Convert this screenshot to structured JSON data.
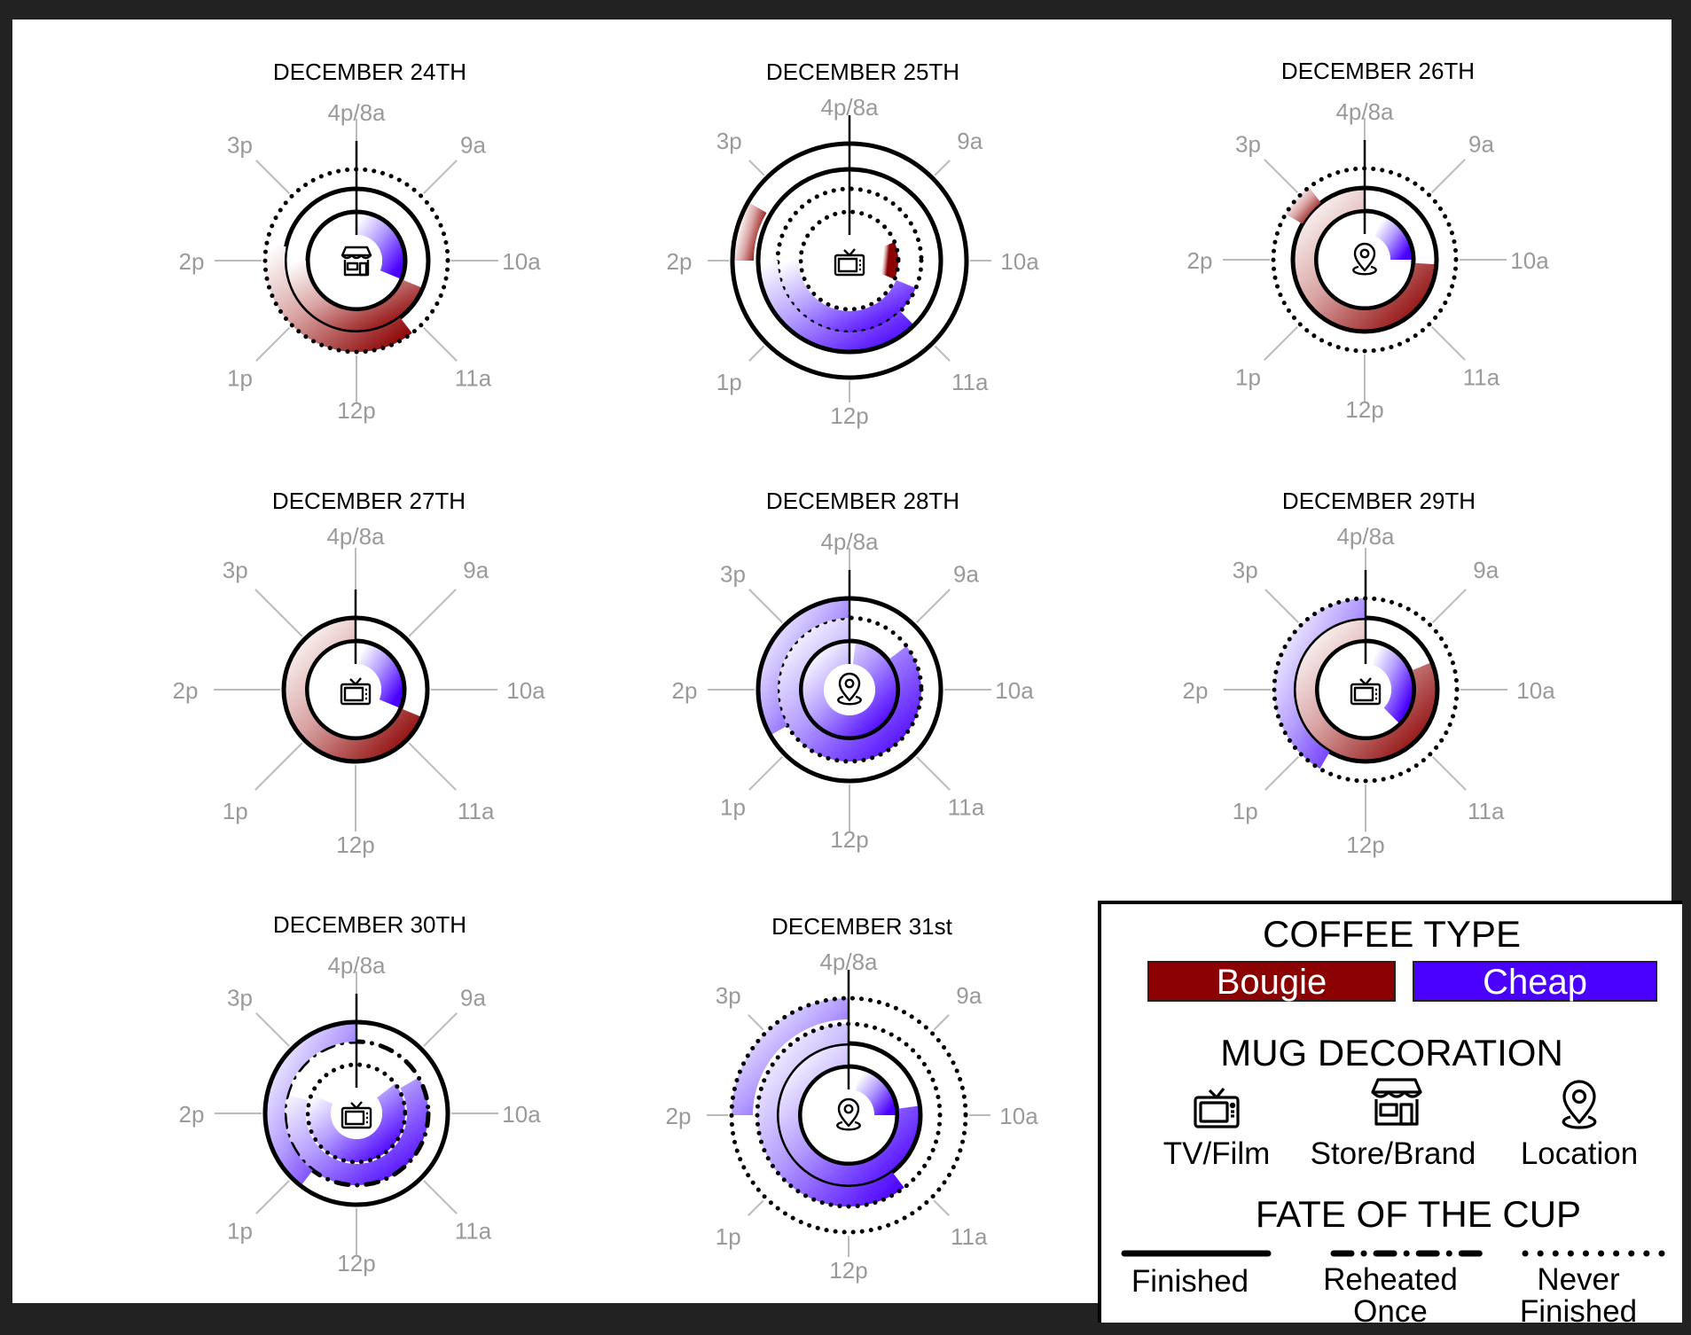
{
  "colors": {
    "bougie": "#8b0000",
    "cheap": "#4a00ff",
    "ring": "#000000",
    "spoke": "#bbbbbb",
    "hour_label": "#9a9a9a"
  },
  "hour_labels": [
    "4p/8a",
    "9a",
    "10a",
    "11a",
    "12p",
    "1p",
    "2p",
    "3p"
  ],
  "days": [
    {
      "title": "DECEMBER 24TH",
      "icon": "store-icon",
      "cups": [
        {
          "type": "cheap",
          "fate": "finished",
          "start": "8a",
          "end": "10:30a"
        },
        {
          "type": "bougie",
          "fate": "finished",
          "start": "10:30a",
          "end": "2p"
        },
        {
          "type": "bougie",
          "fate": "never-finished",
          "start": "11:10a",
          "end": "2:15p"
        }
      ]
    },
    {
      "title": "DECEMBER 25TH",
      "icon": "tv-icon",
      "cups": [
        {
          "type": "bougie",
          "fate": "never-finished",
          "start": "9:30a",
          "end": "10:30a"
        },
        {
          "type": "cheap",
          "fate": "never-finished",
          "start": "10:30a",
          "end": "2p"
        },
        {
          "type": "cheap",
          "fate": "finished",
          "start": "11a",
          "end": "2p"
        },
        {
          "type": "bougie",
          "fate": "finished",
          "start": "2p",
          "end": "2:40p"
        }
      ]
    },
    {
      "title": "DECEMBER 26TH",
      "icon": "location-icon",
      "cups": [
        {
          "type": "cheap",
          "fate": "finished",
          "start": "8:30a",
          "end": "10a"
        },
        {
          "type": "bougie",
          "fate": "finished",
          "start": "10:05a",
          "end": "4p"
        },
        {
          "type": "bougie",
          "fate": "never-finished",
          "start": "2:40p",
          "end": "3:10p"
        }
      ]
    },
    {
      "title": "DECEMBER 27TH",
      "icon": "tv-icon",
      "cups": [
        {
          "type": "cheap",
          "fate": "finished",
          "start": "8:10a",
          "end": "10:30a"
        },
        {
          "type": "bougie",
          "fate": "finished",
          "start": "10:30a",
          "end": "4p"
        }
      ]
    },
    {
      "title": "DECEMBER 28TH",
      "icon": "location-icon",
      "cups": [
        {
          "type": "cheap",
          "fate": "finished",
          "start": "8:10a",
          "end": "4p"
        },
        {
          "type": "cheap",
          "fate": "never-finished",
          "start": "9:10a",
          "end": "4p"
        },
        {
          "type": "cheap",
          "fate": "finished",
          "start": "1:20p",
          "end": "4p"
        }
      ]
    },
    {
      "title": "DECEMBER 29TH",
      "icon": "tv-icon",
      "cups": [
        {
          "type": "cheap",
          "fate": "finished",
          "start": "8:20a",
          "end": "11a"
        },
        {
          "type": "bougie",
          "fate": "finished",
          "start": "9:30a",
          "end": "4p"
        },
        {
          "type": "cheap",
          "fate": "never-finished",
          "start": "12:40p",
          "end": "4p"
        }
      ]
    },
    {
      "title": "DECEMBER 30TH",
      "icon": "tv-icon",
      "cups": [
        {
          "type": "cheap",
          "fate": "never-finished",
          "start": "9:10a",
          "end": "2:30p"
        },
        {
          "type": "cheap",
          "fate": "reheated-once",
          "start": "9:20a",
          "end": "2:20p"
        },
        {
          "type": "cheap",
          "fate": "finished",
          "start": "12:50p",
          "end": "4p"
        }
      ]
    },
    {
      "title": "DECEMBER 31st",
      "icon": "location-icon",
      "cups": [
        {
          "type": "cheap",
          "fate": "finished",
          "start": "8:20a",
          "end": "10a"
        },
        {
          "type": "cheap",
          "fate": "finished",
          "start": "9:50a",
          "end": "4p"
        },
        {
          "type": "cheap",
          "fate": "never-finished",
          "start": "11:10a",
          "end": "4p"
        },
        {
          "type": "cheap",
          "fate": "never-finished",
          "start": "2:00p",
          "end": "4p"
        }
      ]
    }
  ],
  "legend": {
    "coffee_type_title": "COFFEE TYPE",
    "bougie_label": "Bougie",
    "cheap_label": "Cheap",
    "mug_title": "MUG DECORATION",
    "tv_label": "TV/Film",
    "store_label": "Store/Brand",
    "location_label": "Location",
    "fate_title": "FATE OF THE CUP",
    "finished_label": "Finished",
    "reheated_label_1": "Reheated",
    "reheated_label_2": "Once",
    "never_label_1": "Never",
    "never_label_2": "Finished"
  }
}
